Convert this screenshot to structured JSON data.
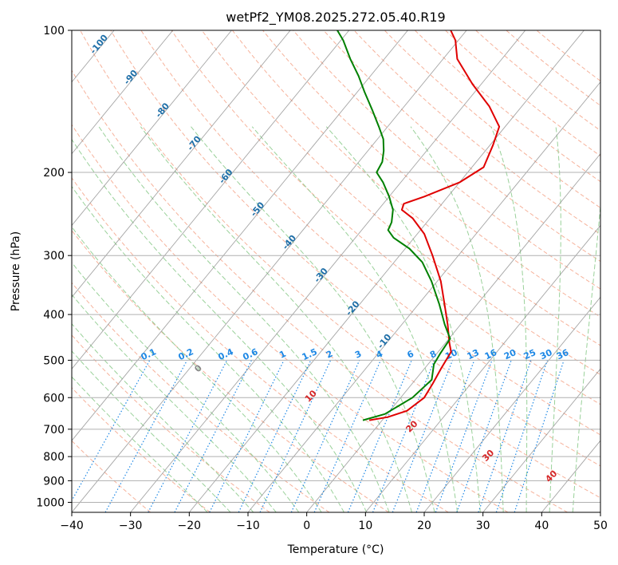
{
  "chart_data": {
    "type": "line",
    "title": "wetPf2_YM08.2025.272.05.40.R19",
    "xlabel": "Temperature (°C)",
    "ylabel": "Pressure (hPa)",
    "xlim": [
      -40,
      50
    ],
    "ylim": [
      1050,
      100
    ],
    "y_scale": "log",
    "x_ticks": [
      -40,
      -30,
      -20,
      -10,
      0,
      10,
      20,
      30,
      40,
      50
    ],
    "y_ticks": [
      100,
      200,
      300,
      400,
      500,
      600,
      700,
      800,
      900,
      1000
    ],
    "grid": true,
    "colors": {
      "temperature": "#e00000",
      "dewpoint": "#008000",
      "isotherm": "#888888",
      "dry_adiabat": "#f4a58a",
      "moist_adiabat": "#8fcc8f",
      "mixing_ratio": "#1e88e5",
      "isotherm_label": "#1f6fa8",
      "moist_label": "#d62728"
    },
    "series": [
      {
        "role": "temperature",
        "points": [
          {
            "p": 670,
            "t": -2.2
          },
          {
            "p": 660,
            "t": 0.5
          },
          {
            "p": 640,
            "t": 2.9
          },
          {
            "p": 600,
            "t": 4.0
          },
          {
            "p": 560,
            "t": 3.5
          },
          {
            "p": 520,
            "t": 2.8
          },
          {
            "p": 480,
            "t": 2.2
          },
          {
            "p": 460,
            "t": 0.7
          },
          {
            "p": 420,
            "t": -2.2
          },
          {
            "p": 380,
            "t": -5.6
          },
          {
            "p": 340,
            "t": -9.4
          },
          {
            "p": 300,
            "t": -14.4
          },
          {
            "p": 270,
            "t": -18.8
          },
          {
            "p": 250,
            "t": -23.0
          },
          {
            "p": 240,
            "t": -26.0
          },
          {
            "p": 233,
            "t": -26.5
          },
          {
            "p": 225,
            "t": -24.0
          },
          {
            "p": 210,
            "t": -20.0
          },
          {
            "p": 195,
            "t": -18.0
          },
          {
            "p": 175,
            "t": -19.5
          },
          {
            "p": 160,
            "t": -21.0
          },
          {
            "p": 145,
            "t": -25.5
          },
          {
            "p": 130,
            "t": -31.5
          },
          {
            "p": 115,
            "t": -37.6
          },
          {
            "p": 105,
            "t": -40.5
          },
          {
            "p": 100,
            "t": -42.7
          }
        ]
      },
      {
        "role": "dewpoint",
        "points": [
          {
            "p": 670,
            "t": -3.3
          },
          {
            "p": 650,
            "t": -0.4
          },
          {
            "p": 600,
            "t": 2.0
          },
          {
            "p": 550,
            "t": 2.8
          },
          {
            "p": 510,
            "t": 1.0
          },
          {
            "p": 485,
            "t": 0.6
          },
          {
            "p": 450,
            "t": 0.2
          },
          {
            "p": 420,
            "t": -2.7
          },
          {
            "p": 380,
            "t": -6.5
          },
          {
            "p": 340,
            "t": -11.0
          },
          {
            "p": 310,
            "t": -15.2
          },
          {
            "p": 290,
            "t": -19.3
          },
          {
            "p": 275,
            "t": -23.5
          },
          {
            "p": 265,
            "t": -25.5
          },
          {
            "p": 255,
            "t": -26.0
          },
          {
            "p": 240,
            "t": -27.5
          },
          {
            "p": 225,
            "t": -30.0
          },
          {
            "p": 210,
            "t": -33.0
          },
          {
            "p": 200,
            "t": -35.5
          },
          {
            "p": 190,
            "t": -36.0
          },
          {
            "p": 180,
            "t": -37.3
          },
          {
            "p": 170,
            "t": -39.0
          },
          {
            "p": 160,
            "t": -41.5
          },
          {
            "p": 148,
            "t": -44.8
          },
          {
            "p": 135,
            "t": -48.8
          },
          {
            "p": 125,
            "t": -52.0
          },
          {
            "p": 115,
            "t": -55.8
          },
          {
            "p": 105,
            "t": -59.6
          },
          {
            "p": 100,
            "t": -62.0
          }
        ]
      }
    ],
    "isotherm_labels": [
      "-100",
      "-90",
      "-80",
      "-70",
      "-60",
      "-50",
      "-40",
      "-30",
      "-20",
      "-10"
    ],
    "moist_adiabat_labels": [
      "0",
      "10",
      "20",
      "30",
      "40"
    ],
    "mixing_ratio_labels": [
      "0.1",
      "0.2",
      "0.4",
      "0.6",
      "1",
      "1.5",
      "2",
      "3",
      "4",
      "6",
      "8",
      "10",
      "13",
      "16",
      "20",
      "25",
      "30",
      "36"
    ]
  }
}
